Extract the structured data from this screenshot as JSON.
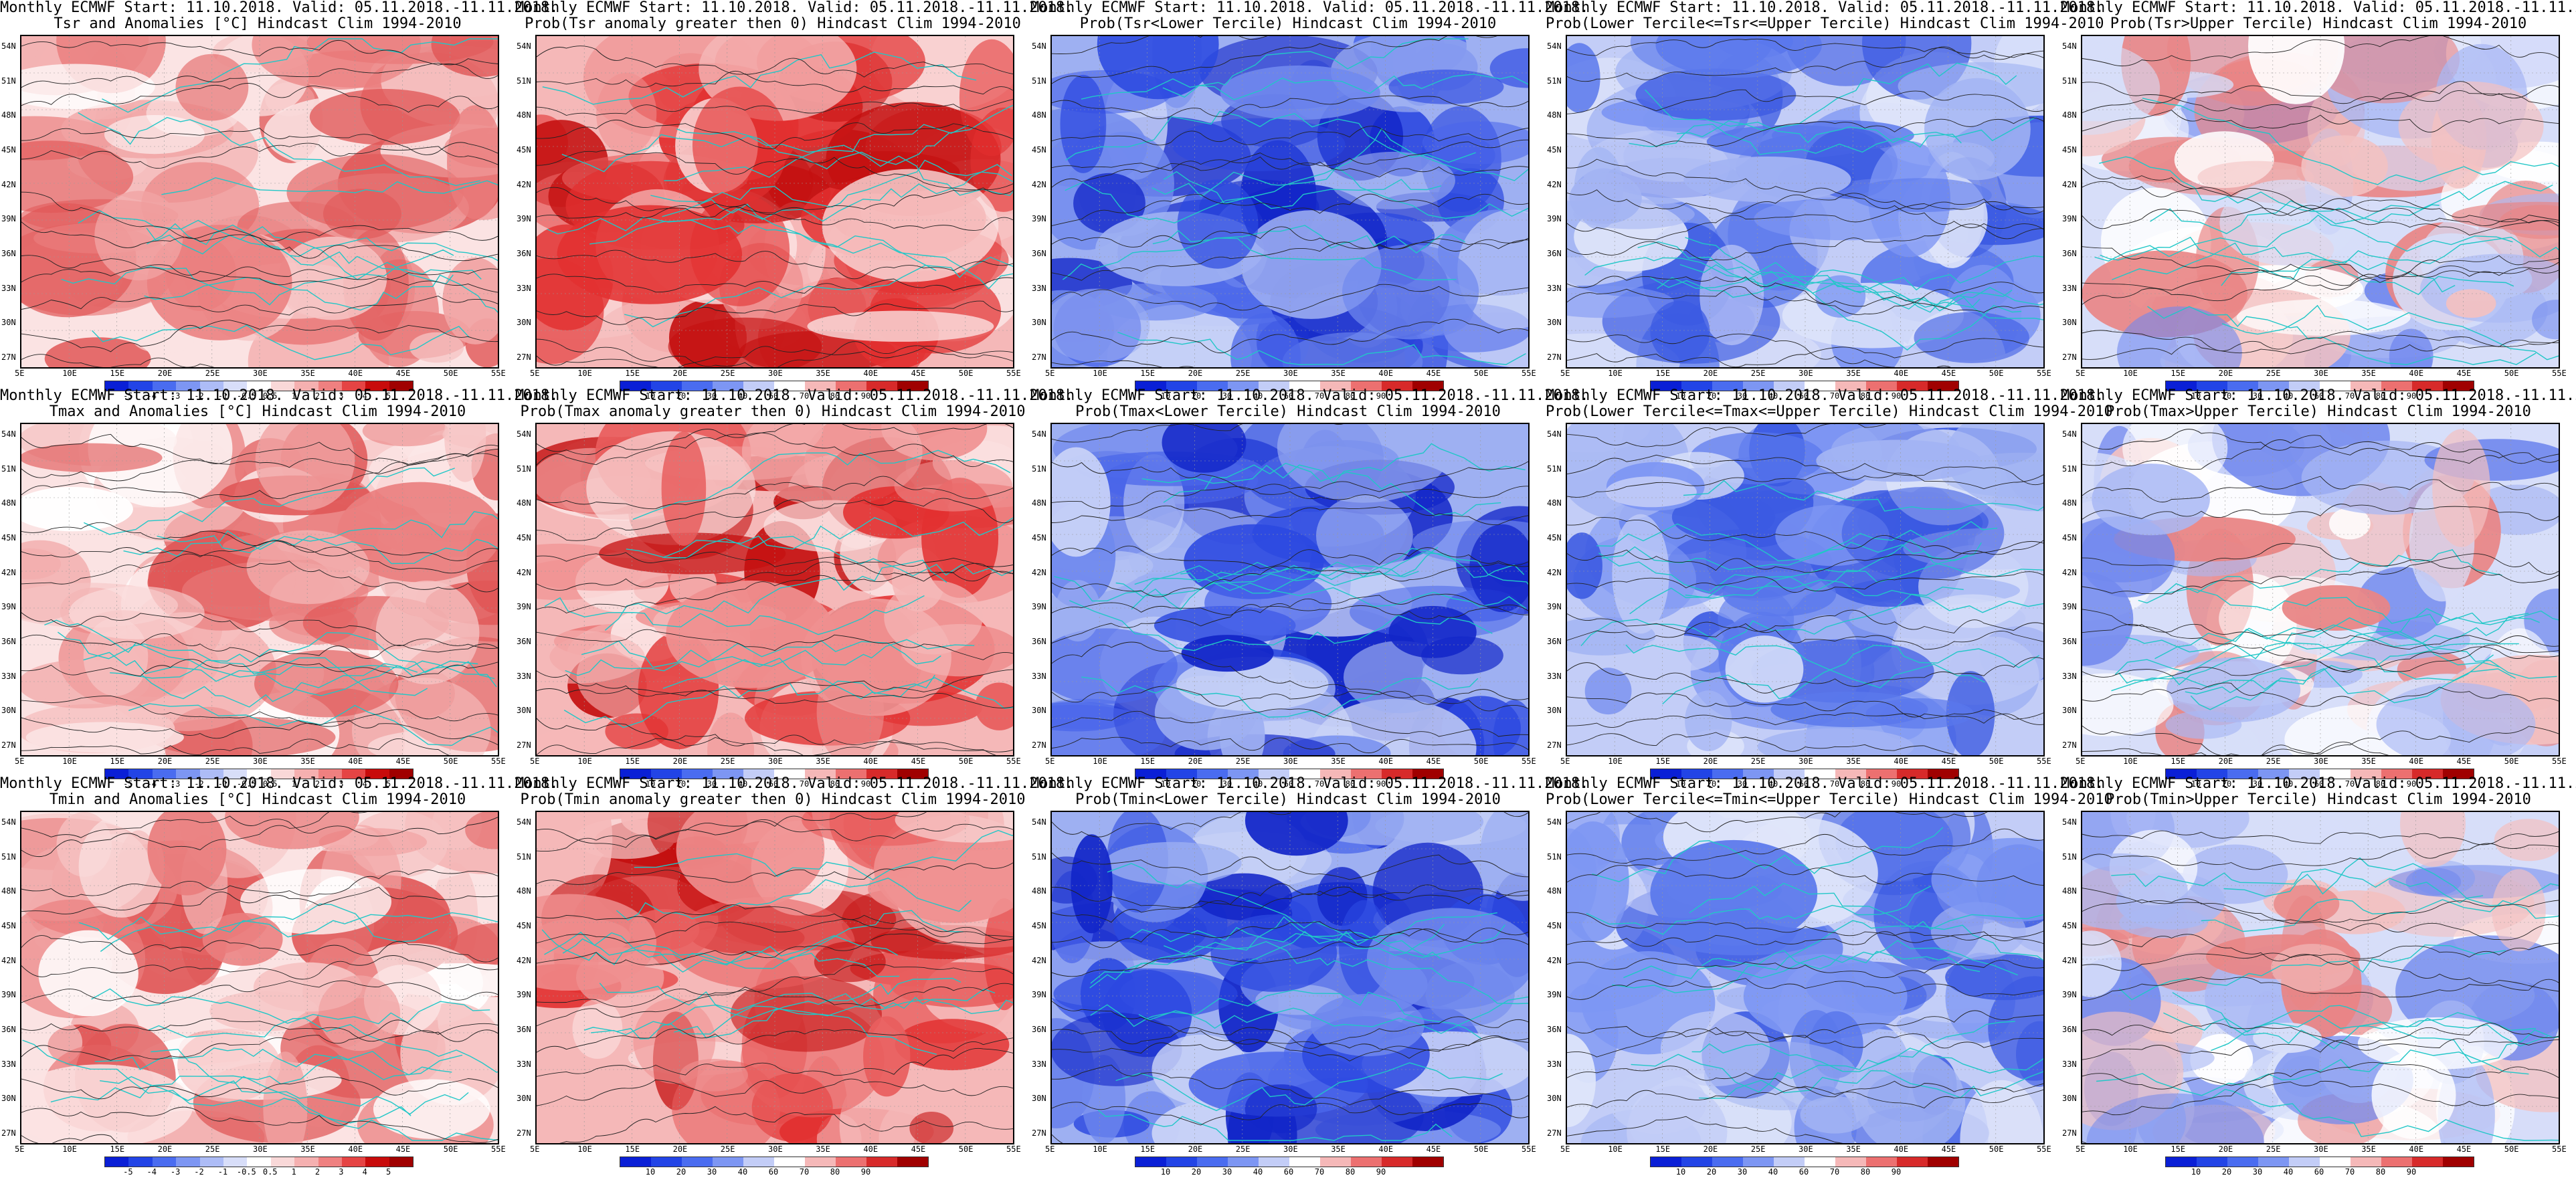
{
  "header_lines": [
    "Monthly ECMWF Start: 11.10.2018. Valid: 05.11.2018.-11.11.2018."
  ],
  "lat_ticks": [
    "54N",
    "51N",
    "48N",
    "45N",
    "42N",
    "39N",
    "36N",
    "33N",
    "30N",
    "27N"
  ],
  "lon_ticks": [
    "5E",
    "10E",
    "15E",
    "20E",
    "25E",
    "30E",
    "35E",
    "40E",
    "45E",
    "50E",
    "55E"
  ],
  "colorbars": {
    "anomaly": {
      "labels": [
        "-5",
        "-4",
        "-3",
        "-2",
        "-1",
        "-0.5",
        "0.5",
        "1",
        "2",
        "3",
        "4",
        "5"
      ],
      "colors": [
        "#0a1fd6",
        "#2244e6",
        "#4a6cf0",
        "#7d96f3",
        "#adbcf6",
        "#d8def9",
        "#ffffff",
        "#f9d8d8",
        "#f5b0b0",
        "#ef8080",
        "#e54444",
        "#c80b0b",
        "#a00000"
      ]
    },
    "prob": {
      "labels": [
        "10",
        "20",
        "30",
        "40",
        "60",
        "70",
        "80",
        "90"
      ],
      "colors": [
        "#0a1fd6",
        "#2244e6",
        "#4a6cf0",
        "#7d96f3",
        "#c3cdf7",
        "#ffffff",
        "#f5b8b8",
        "#ec7070",
        "#d72a2a",
        "#a00000"
      ]
    }
  },
  "rows": [
    {
      "var": "Tsr",
      "panels": [
        {
          "title2": "Tsr and Anomalies [°C] Hindcast Clim 1994-2010",
          "kind": "anomaly",
          "scheme": "warm"
        },
        {
          "title2": "Prob(Tsr anomaly greater then 0) Hindcast Clim 1994-2010",
          "kind": "prob",
          "scheme": "hot"
        },
        {
          "title2": "Prob(Tsr<Lower Tercile) Hindcast Clim 1994-2010",
          "kind": "prob",
          "scheme": "coldstrong"
        },
        {
          "title2": "Prob(Lower Tercile<=Tsr<=Upper Tercile) Hindcast Clim 1994-2010",
          "kind": "prob",
          "scheme": "coldmid"
        },
        {
          "title2": "Prob(Tsr>Upper Tercile) Hindcast Clim 1994-2010",
          "kind": "prob",
          "scheme": "mixed"
        }
      ]
    },
    {
      "var": "Tmax",
      "panels": [
        {
          "title2": "Tmax and Anomalies [°C] Hindcast Clim 1994-2010",
          "kind": "anomaly",
          "scheme": "warm"
        },
        {
          "title2": "Prob(Tmax anomaly greater then 0) Hindcast Clim 1994-2010",
          "kind": "prob",
          "scheme": "hot"
        },
        {
          "title2": "Prob(Tmax<Lower Tercile) Hindcast Clim 1994-2010",
          "kind": "prob",
          "scheme": "coldstrong"
        },
        {
          "title2": "Prob(Lower Tercile<=Tmax<=Upper Tercile) Hindcast Clim 1994-2010",
          "kind": "prob",
          "scheme": "coldmid"
        },
        {
          "title2": "Prob(Tmax>Upper Tercile) Hindcast Clim 1994-2010",
          "kind": "prob",
          "scheme": "mixed"
        }
      ]
    },
    {
      "var": "Tmin",
      "panels": [
        {
          "title2": "Tmin and Anomalies [°C] Hindcast Clim 1994-2010",
          "kind": "anomaly",
          "scheme": "warm"
        },
        {
          "title2": "Prob(Tmin anomaly greater then 0) Hindcast Clim 1994-2010",
          "kind": "prob",
          "scheme": "hot"
        },
        {
          "title2": "Prob(Tmin<Lower Tercile) Hindcast Clim 1994-2010",
          "kind": "prob",
          "scheme": "coldstrong"
        },
        {
          "title2": "Prob(Lower Tercile<=Tmin<=Upper Tercile) Hindcast Clim 1994-2010",
          "kind": "prob",
          "scheme": "coldmid"
        },
        {
          "title2": "Prob(Tmin>Upper Tercile) Hindcast Clim 1994-2010",
          "kind": "prob",
          "scheme": "mixed"
        }
      ]
    }
  ]
}
